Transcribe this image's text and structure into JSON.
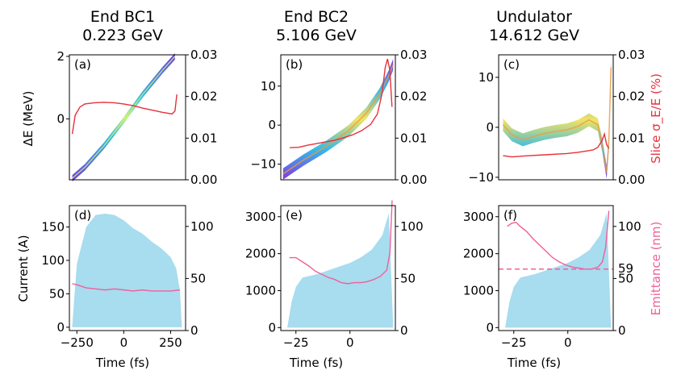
{
  "columns": [
    {
      "title_line1": "End BC1",
      "title_line2": "0.223 GeV"
    },
    {
      "title_line1": "End BC2",
      "title_line2": "5.106 GeV"
    },
    {
      "title_line1": "Undulator",
      "title_line2": "14.612 GeV"
    }
  ],
  "labels": {
    "row1_left": "ΔE (MeV)",
    "row1_right": "Slice σ_E/E (%)",
    "row2_left": "Current (A)",
    "row2_right": "Emittance (nm)",
    "xlabel": "Time (fs)"
  },
  "colors": {
    "slice_spread": "#e8303a",
    "emittance": "#f0609a",
    "current_fill": "#a8dcef",
    "right_label_top": "#e8303a",
    "right_label_bottom": "#f0609a"
  },
  "chart_data": [
    {
      "panel": "(a)",
      "type": "scatter",
      "description_series": "longitudinal phase space density with slice energy spread",
      "xlim": [
        -280,
        320
      ],
      "ylim": [
        -1.95,
        2.05
      ],
      "y2lim": [
        0,
        0.03
      ],
      "yticks": [
        2,
        0
      ],
      "y2ticks": [
        "0.00",
        "0.01",
        "0.02",
        "0.03"
      ],
      "phase_space": {
        "x": [
          -265,
          -200,
          -100,
          0,
          100,
          200,
          265
        ],
        "y": [
          -1.9,
          -1.55,
          -0.85,
          -0.05,
          0.8,
          1.55,
          2.0
        ]
      },
      "slice_spread": {
        "name": "Slice σE/E (%)",
        "x": [
          -265,
          -250,
          -225,
          -200,
          -150,
          -100,
          -50,
          0,
          50,
          100,
          150,
          200,
          250,
          265,
          275
        ],
        "y": [
          0.011,
          0.0155,
          0.0175,
          0.0182,
          0.0185,
          0.0186,
          0.0185,
          0.0182,
          0.0178,
          0.0172,
          0.0167,
          0.0162,
          0.0158,
          0.0165,
          0.0205
        ]
      }
    },
    {
      "panel": "(b)",
      "type": "scatter",
      "xlim": [
        -30,
        21
      ],
      "ylim": [
        -14,
        18
      ],
      "y2lim": [
        0,
        0.03
      ],
      "yticks": [
        10,
        0,
        -10
      ],
      "y2ticks": [
        "0.00",
        "0.01",
        "0.02",
        "0.03"
      ],
      "phase_space": {
        "x": [
          -29,
          -20,
          -10,
          0,
          8,
          14,
          18,
          20
        ],
        "y": [
          -12.5,
          -9,
          -5.5,
          -1.5,
          3,
          8,
          12.5,
          15.5
        ]
      },
      "slice_spread": {
        "name": "Slice σE/E (%)",
        "x": [
          -26,
          -22,
          -18,
          -14,
          -10,
          -6,
          -2,
          2,
          6,
          10,
          13,
          15,
          16.5,
          17.5,
          18.5,
          19.5
        ],
        "y": [
          0.0077,
          0.0078,
          0.0083,
          0.0087,
          0.0091,
          0.0095,
          0.0101,
          0.0108,
          0.0118,
          0.0133,
          0.0158,
          0.0205,
          0.027,
          0.029,
          0.0265,
          0.0175
        ]
      }
    },
    {
      "panel": "(c)",
      "type": "scatter",
      "xlim": [
        -31,
        21
      ],
      "ylim": [
        -10.5,
        14.5
      ],
      "y2lim": [
        0,
        0.03
      ],
      "yticks": [
        10,
        0,
        -10
      ],
      "y2ticks": [
        "0.00",
        "0.01",
        "0.02",
        "0.03"
      ],
      "phase_space": {
        "x": [
          -29,
          -25,
          -20,
          -15,
          -10,
          -5,
          0,
          5,
          10,
          14,
          16,
          18,
          19,
          20
        ],
        "y": [
          0.5,
          -1.5,
          -2.5,
          -1.8,
          -1.2,
          -0.8,
          -0.5,
          0.2,
          1.5,
          0.5,
          -3.5,
          -9,
          -3,
          12
        ]
      },
      "slice_spread": {
        "name": "Slice σE/E (%)",
        "x": [
          -29,
          -25,
          -20,
          -10,
          0,
          5,
          10,
          12,
          14,
          16,
          17,
          18,
          19
        ],
        "y": [
          0.0058,
          0.0055,
          0.0057,
          0.006,
          0.0063,
          0.0066,
          0.007,
          0.0072,
          0.0078,
          0.0095,
          0.011,
          0.0085,
          0.0075
        ]
      }
    },
    {
      "panel": "(d)",
      "type": "area",
      "xlim": [
        -290,
        330
      ],
      "ylim": [
        -5,
        182
      ],
      "y2lim": [
        0,
        120
      ],
      "xticks": [
        "-250",
        "0",
        "250"
      ],
      "yticks": [
        "0",
        "50",
        "100",
        "150"
      ],
      "y2ticks": [
        "0",
        "50",
        "100"
      ],
      "current": {
        "x": [
          -275,
          -265,
          -250,
          -200,
          -150,
          -100,
          -50,
          0,
          50,
          100,
          150,
          200,
          250,
          280,
          300,
          310
        ],
        "y": [
          0,
          40,
          95,
          150,
          168,
          170,
          168,
          160,
          148,
          140,
          128,
          118,
          105,
          88,
          55,
          0
        ]
      },
      "emittance": {
        "name": "Emittance (nm)",
        "x": [
          -275,
          -250,
          -200,
          -150,
          -100,
          -50,
          0,
          50,
          100,
          150,
          200,
          250,
          300
        ],
        "y": [
          45,
          44,
          41,
          40,
          39,
          40,
          39,
          38,
          39,
          38,
          38,
          38,
          39
        ]
      }
    },
    {
      "panel": "(e)",
      "type": "area",
      "xlim": [
        -32,
        21
      ],
      "ylim": [
        -80,
        3300
      ],
      "y2lim": [
        0,
        120
      ],
      "xticks": [
        "-25",
        "0"
      ],
      "yticks": [
        "0",
        "1000",
        "2000",
        "3000"
      ],
      "y2ticks": [
        "0",
        "50",
        "100"
      ],
      "current": {
        "x": [
          -29,
          -27,
          -25,
          -22,
          -20,
          -15,
          -10,
          -5,
          0,
          5,
          10,
          15,
          18,
          20
        ],
        "y": [
          0,
          700,
          1100,
          1350,
          1380,
          1450,
          1550,
          1650,
          1750,
          1900,
          2100,
          2500,
          3100,
          0
        ]
      },
      "emittance": {
        "name": "Emittance (nm)",
        "x": [
          -28,
          -25,
          -22,
          -19,
          -16,
          -13,
          -10,
          -7,
          -4,
          -1,
          2,
          5,
          8,
          11,
          14,
          17,
          18.5,
          19.5
        ],
        "y": [
          70,
          70,
          66,
          62,
          57,
          54,
          51,
          49,
          46,
          45,
          46,
          46,
          47,
          49,
          52,
          58,
          75,
          125
        ]
      }
    },
    {
      "panel": "(f)",
      "type": "area",
      "xlim": [
        -32,
        21
      ],
      "ylim": [
        -80,
        3300
      ],
      "y2lim": [
        0,
        120
      ],
      "xticks": [
        "-25",
        "0"
      ],
      "yticks": [
        "0",
        "1000",
        "2000",
        "3000"
      ],
      "y2ticks": [
        "0",
        "50",
        "100"
      ],
      "reference_line": {
        "value": 59,
        "label": "59"
      },
      "current": {
        "x": [
          -29,
          -27,
          -25,
          -22,
          -20,
          -15,
          -10,
          -5,
          0,
          5,
          10,
          15,
          18,
          20
        ],
        "y": [
          0,
          700,
          1100,
          1350,
          1380,
          1450,
          1550,
          1650,
          1750,
          1900,
          2100,
          2500,
          3100,
          0
        ]
      },
      "emittance": {
        "name": "Emittance (nm)",
        "x": [
          -28,
          -26,
          -24,
          -22,
          -19,
          -16,
          -13,
          -10,
          -7,
          -4,
          -1,
          2,
          5,
          8,
          11,
          14,
          16,
          17.5,
          19
        ],
        "y": [
          100,
          103,
          104,
          100,
          95,
          88,
          82,
          76,
          70,
          66,
          63,
          61,
          60,
          59,
          59,
          61,
          66,
          80,
          115
        ]
      }
    }
  ]
}
